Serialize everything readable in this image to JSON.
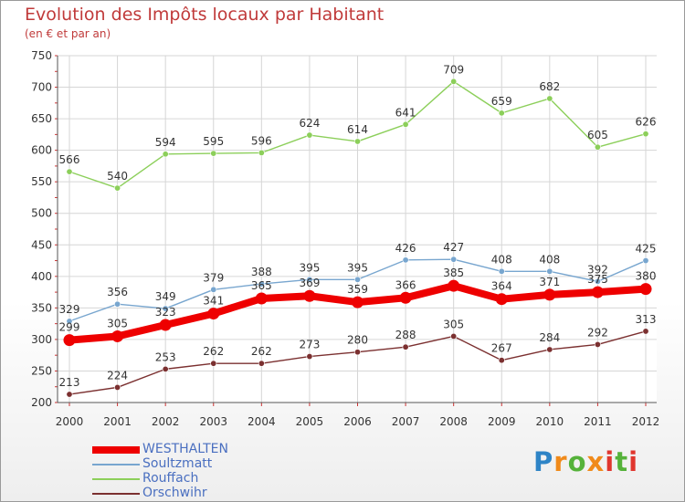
{
  "title": "Evolution des Impôts locaux par Habitant",
  "subtitle": "(en € et par an)",
  "logo_text": "Proxiti",
  "chart_data": {
    "type": "line",
    "x": [
      "2000",
      "2001",
      "2002",
      "2003",
      "2004",
      "2005",
      "2006",
      "2007",
      "2008",
      "2009",
      "2010",
      "2011",
      "2012"
    ],
    "ylim": [
      200,
      750
    ],
    "yticks": [
      200,
      250,
      300,
      350,
      400,
      450,
      500,
      550,
      600,
      650,
      700,
      750
    ],
    "grid": true,
    "legend_position": "bottom-left",
    "series": [
      {
        "name": "Rouffach",
        "color": "#8ccf5a",
        "values": [
          566,
          540,
          594,
          595,
          596,
          624,
          614,
          641,
          709,
          659,
          682,
          605,
          626
        ]
      },
      {
        "name": "Soultzmatt",
        "color": "#78a6cf",
        "values": [
          329,
          356,
          349,
          379,
          388,
          395,
          395,
          426,
          427,
          408,
          408,
          392,
          425
        ]
      },
      {
        "name": "Orschwihr",
        "color": "#7b3030",
        "values": [
          213,
          224,
          253,
          262,
          262,
          273,
          280,
          288,
          305,
          267,
          284,
          292,
          313
        ]
      },
      {
        "name": "WESTHALTEN",
        "color": "#ee0000",
        "values": [
          299,
          305,
          323,
          341,
          365,
          369,
          359,
          366,
          385,
          364,
          371,
          375,
          380
        ]
      }
    ],
    "legend_order": [
      "WESTHALTEN",
      "Soultzmatt",
      "Rouffach",
      "Orschwihr"
    ]
  }
}
